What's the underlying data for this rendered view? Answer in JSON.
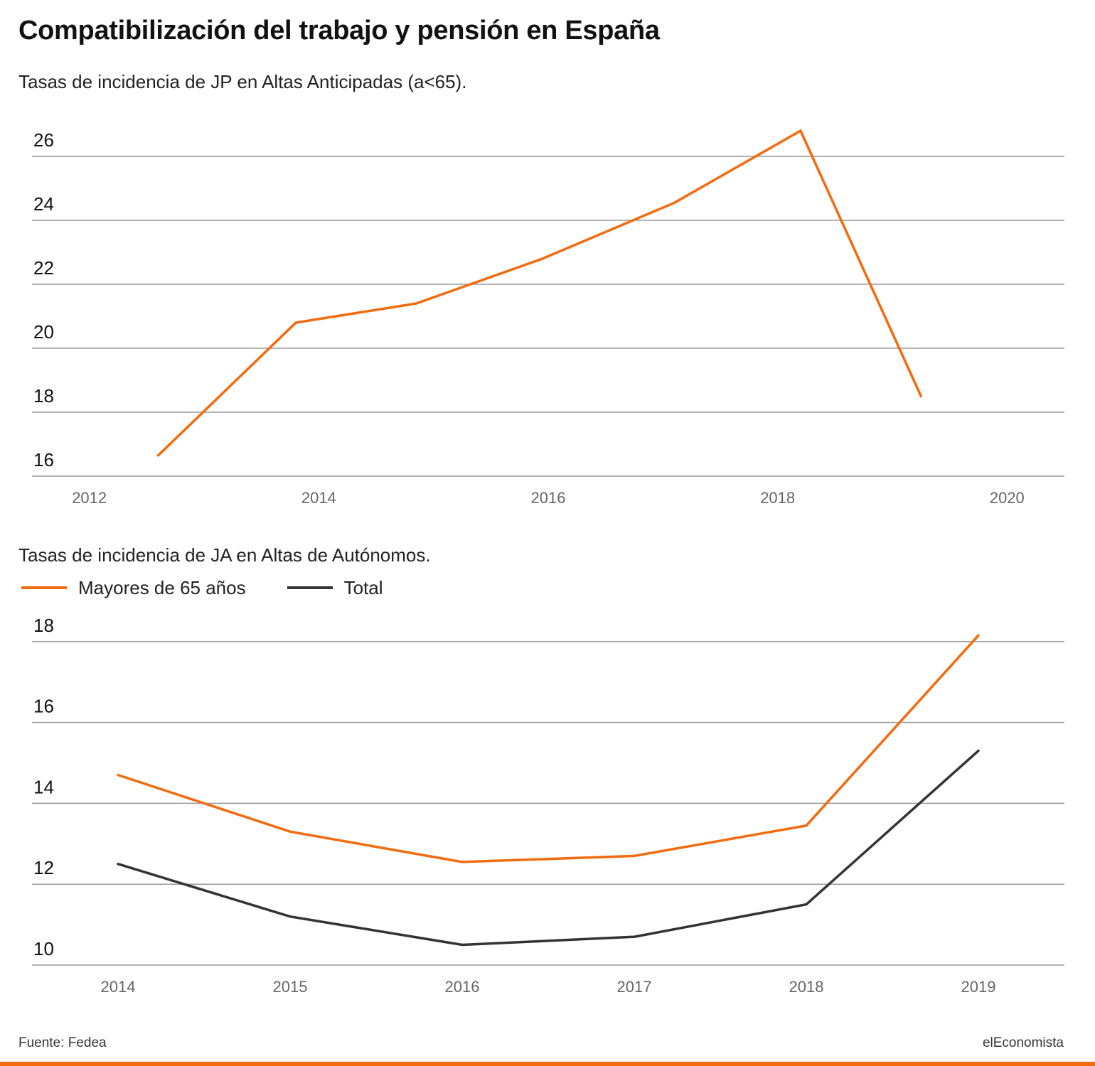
{
  "title": "Compatibilización del trabajo y pensión en España",
  "colors": {
    "orange": "#f26b0f",
    "dark": "#333333",
    "grid": "#9a9a9a"
  },
  "chart_data": [
    {
      "type": "line",
      "subtitle": "Tasas de incidencia de JP en Altas Anticipadas (a<65).",
      "x_ticks": [
        2012,
        2014,
        2016,
        2018,
        2020
      ],
      "y_ticks": [
        16,
        18,
        20,
        22,
        24,
        26
      ],
      "xlim": [
        2011.5,
        2020.5
      ],
      "ylim": [
        16,
        26.8
      ],
      "grid": true,
      "series": [
        {
          "color": "#f26b0f",
          "x": [
            2012.6,
            2013.8,
            2014.85,
            2015.95,
            2017.1,
            2018.2,
            2019.25
          ],
          "y": [
            16.65,
            20.8,
            21.4,
            22.8,
            24.55,
            26.8,
            18.5
          ]
        }
      ]
    },
    {
      "type": "line",
      "subtitle": "Tasas de incidencia de JA en Altas de Autónomos.",
      "categories": [
        "2014",
        "2015",
        "2016",
        "2017",
        "2018",
        "2019"
      ],
      "y_ticks": [
        10,
        12,
        14,
        16,
        18
      ],
      "ylim": [
        10,
        18.4
      ],
      "grid": true,
      "legend": "top-left",
      "series": [
        {
          "name": "Mayores de 65 años",
          "color": "#f26b0f",
          "values": [
            14.7,
            13.3,
            12.55,
            12.7,
            13.45,
            18.15
          ]
        },
        {
          "name": "Total",
          "color": "#333333",
          "values": [
            12.5,
            11.2,
            10.5,
            10.7,
            11.5,
            15.3
          ]
        }
      ]
    }
  ],
  "footer": {
    "source": "Fuente: Fedea",
    "brand": "elEconomista"
  }
}
